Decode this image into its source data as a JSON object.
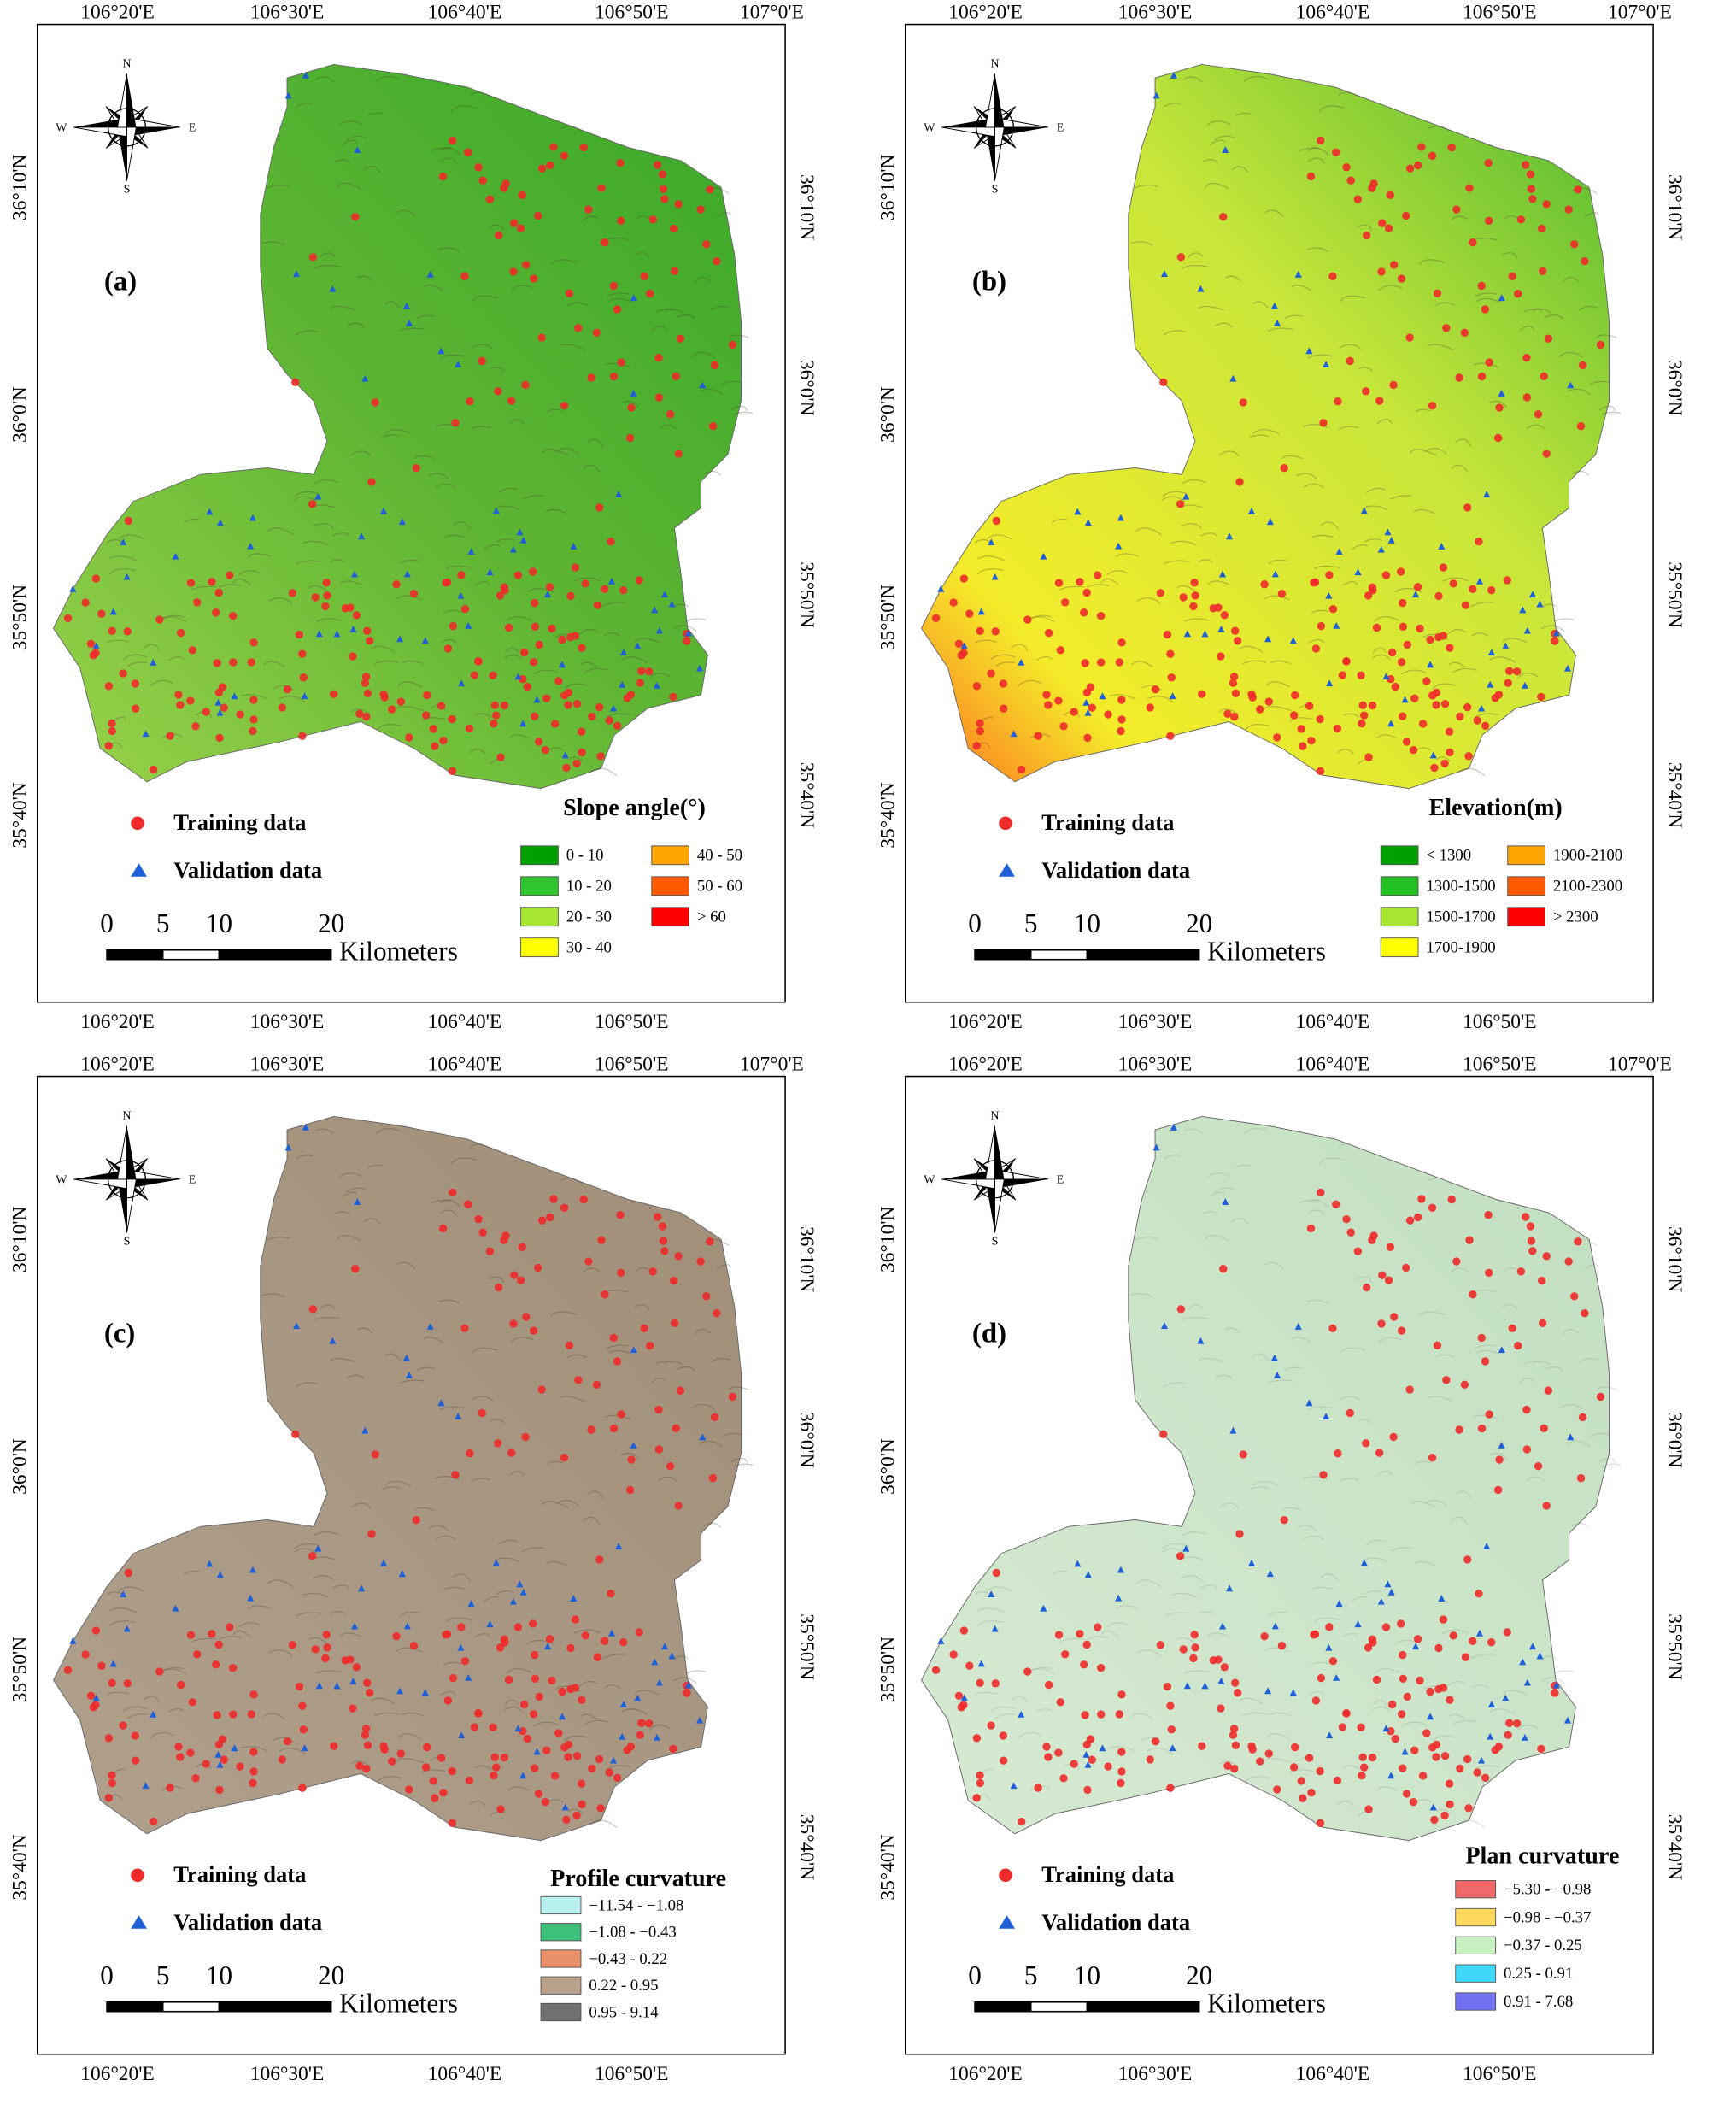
{
  "graticule": {
    "top": [
      "106°20'E",
      "106°30'E",
      "106°40'E",
      "106°50'E",
      "107°0'E"
    ],
    "bottom": [
      "106°20'E",
      "106°30'E",
      "106°40'E",
      "106°50'E"
    ],
    "left": [
      "36°10'N",
      "36°0'N",
      "35°50'N",
      "35°40'N"
    ],
    "right": [
      "36°10'N",
      "36°0'N",
      "35°50'N",
      "35°40'N"
    ]
  },
  "compass": {
    "n": "N",
    "s": "S",
    "e": "E",
    "w": "W"
  },
  "samples": {
    "training": "Training data",
    "validation": "Validation data"
  },
  "scale_bar": {
    "ticks": [
      0,
      5,
      10,
      20
    ],
    "unit": "Kilometers"
  },
  "panels": [
    {
      "label": "(a)",
      "legend_title": "Slope angle(°)",
      "classes": [
        {
          "label": "0 - 10",
          "color": "#00a000"
        },
        {
          "label": "10 - 20",
          "color": "#2ec52e"
        },
        {
          "label": "20 - 30",
          "color": "#a6e632"
        },
        {
          "label": "30 - 40",
          "color": "#ffff00"
        },
        {
          "label": "40 - 50",
          "color": "#ffa500"
        },
        {
          "label": "50 - 60",
          "color": "#ff5a00"
        },
        {
          "label": "> 60",
          "color": "#ff0000"
        }
      ]
    },
    {
      "label": "(b)",
      "legend_title": "Elevation(m)",
      "classes": [
        {
          "label": "< 1300",
          "color": "#00a000"
        },
        {
          "label": "1300-1500",
          "color": "#22c022"
        },
        {
          "label": "1500-1700",
          "color": "#a6e632"
        },
        {
          "label": "1700-1900",
          "color": "#ffff00"
        },
        {
          "label": "1900-2100",
          "color": "#ffa500"
        },
        {
          "label": "2100-2300",
          "color": "#ff5a00"
        },
        {
          "label": "> 2300",
          "color": "#ff0000"
        }
      ]
    },
    {
      "label": "(c)",
      "legend_title": "Profile curvature",
      "classes": [
        {
          "label": "−11.54 - −1.08",
          "color": "#b8f0ee"
        },
        {
          "label": "−1.08 - −0.43",
          "color": "#3cc07a"
        },
        {
          "label": "−0.43 - 0.22",
          "color": "#e8906a"
        },
        {
          "label": "0.22 - 0.95",
          "color": "#b8a08a"
        },
        {
          "label": "0.95 - 9.14",
          "color": "#707070"
        }
      ]
    },
    {
      "label": "(d)",
      "legend_title": "Plan curvature",
      "classes": [
        {
          "label": "−5.30 - −0.98",
          "color": "#f06868"
        },
        {
          "label": "−0.98 - −0.37",
          "color": "#ffd860"
        },
        {
          "label": "−0.37 - 0.25",
          "color": "#c8f0c0"
        },
        {
          "label": "0.25 - 0.91",
          "color": "#40d8f8"
        },
        {
          "label": "0.91 - 7.68",
          "color": "#7070f0"
        }
      ]
    }
  ]
}
